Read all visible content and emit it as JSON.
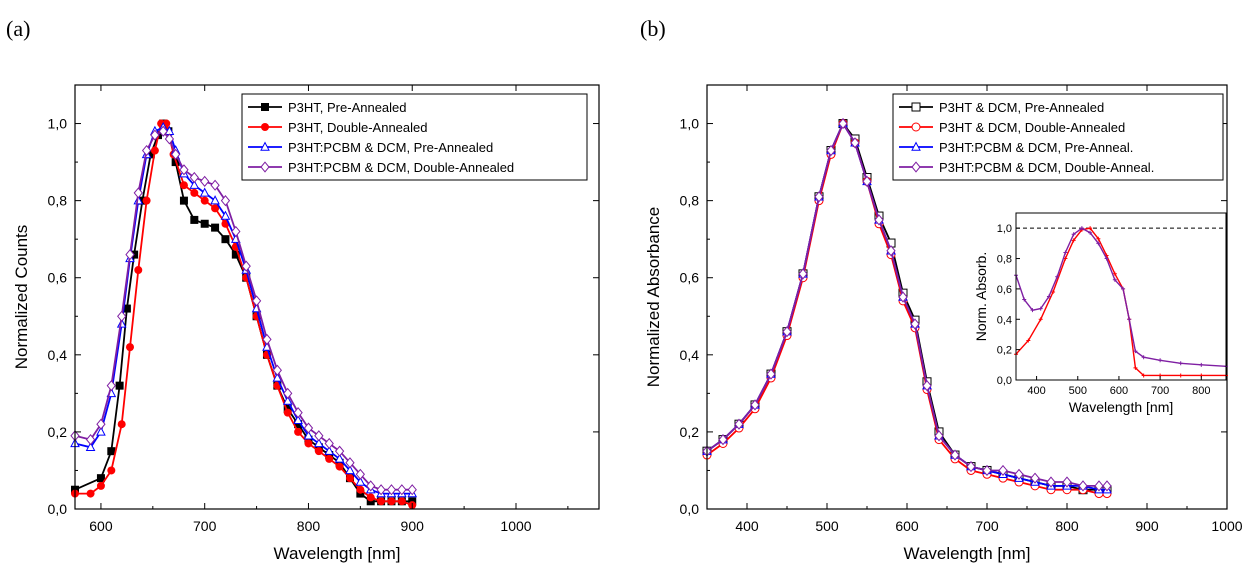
{
  "chart_data": [
    {
      "panel_label": "(a)",
      "type": "line",
      "xlabel": "Wavelength [nm]",
      "ylabel": "Normalized Counts",
      "xlim": [
        575,
        1080
      ],
      "ylim": [
        0.0,
        1.1
      ],
      "xticks": [
        600,
        700,
        800,
        900,
        1000
      ],
      "yticks": [
        0.0,
        0.2,
        0.4,
        0.6,
        0.8,
        1.0
      ],
      "xtick_labels": [
        "600",
        "700",
        "800",
        "900",
        "1000"
      ],
      "ytick_labels": [
        "0,0",
        "0,2",
        "0,4",
        "0,6",
        "0,8",
        "1,0"
      ],
      "grid": false,
      "legend_position": "top-right",
      "series": [
        {
          "name": "P3HT, Pre-Annealed",
          "color": "#000000",
          "marker": "square-filled",
          "x": [
            575,
            600,
            610,
            618,
            625,
            632,
            640,
            648,
            655,
            660,
            665,
            672,
            680,
            690,
            700,
            710,
            720,
            730,
            740,
            750,
            760,
            770,
            780,
            790,
            800,
            810,
            820,
            830,
            840,
            850,
            860,
            870,
            880,
            890,
            900
          ],
          "y": [
            0.05,
            0.08,
            0.15,
            0.32,
            0.52,
            0.66,
            0.8,
            0.92,
            0.97,
            1.0,
            0.98,
            0.9,
            0.8,
            0.75,
            0.74,
            0.73,
            0.7,
            0.66,
            0.6,
            0.5,
            0.4,
            0.32,
            0.26,
            0.22,
            0.18,
            0.16,
            0.14,
            0.12,
            0.08,
            0.04,
            0.02,
            0.02,
            0.02,
            0.02,
            0.02
          ]
        },
        {
          "name": "P3HT, Double-Annealed",
          "color": "#ff0000",
          "marker": "circle-filled",
          "x": [
            575,
            590,
            600,
            610,
            620,
            628,
            636,
            644,
            652,
            658,
            663,
            670,
            680,
            690,
            700,
            710,
            720,
            730,
            740,
            750,
            760,
            770,
            780,
            790,
            800,
            810,
            820,
            830,
            840,
            850,
            860,
            870,
            880,
            890,
            900
          ],
          "y": [
            0.04,
            0.04,
            0.06,
            0.1,
            0.22,
            0.42,
            0.62,
            0.8,
            0.93,
            1.0,
            1.0,
            0.92,
            0.84,
            0.82,
            0.8,
            0.78,
            0.74,
            0.68,
            0.6,
            0.5,
            0.4,
            0.32,
            0.25,
            0.2,
            0.17,
            0.15,
            0.13,
            0.11,
            0.08,
            0.05,
            0.03,
            0.02,
            0.02,
            0.02,
            0.01
          ]
        },
        {
          "name": "P3HT:PCBM & DCM, Pre-Annealed",
          "color": "#0000ff",
          "marker": "triangle-open",
          "x": [
            575,
            590,
            600,
            610,
            620,
            628,
            636,
            644,
            652,
            660,
            666,
            672,
            680,
            690,
            700,
            710,
            720,
            730,
            740,
            750,
            760,
            770,
            780,
            790,
            800,
            810,
            820,
            830,
            840,
            850,
            860,
            870,
            880,
            890,
            900
          ],
          "y": [
            0.17,
            0.16,
            0.2,
            0.3,
            0.48,
            0.65,
            0.8,
            0.92,
            0.98,
            0.99,
            0.98,
            0.93,
            0.87,
            0.84,
            0.82,
            0.8,
            0.76,
            0.7,
            0.62,
            0.52,
            0.42,
            0.34,
            0.28,
            0.23,
            0.19,
            0.17,
            0.15,
            0.13,
            0.1,
            0.07,
            0.05,
            0.04,
            0.04,
            0.04,
            0.04
          ]
        },
        {
          "name": "P3HT:PCBM & DCM, Double-Annealed",
          "color": "#7f1fa3",
          "marker": "diamond-open",
          "x": [
            575,
            590,
            600,
            610,
            620,
            628,
            636,
            644,
            652,
            660,
            666,
            672,
            680,
            690,
            700,
            710,
            720,
            730,
            740,
            750,
            760,
            770,
            780,
            790,
            800,
            810,
            820,
            830,
            840,
            850,
            860,
            870,
            880,
            890,
            900
          ],
          "y": [
            0.19,
            0.18,
            0.22,
            0.32,
            0.5,
            0.66,
            0.82,
            0.93,
            0.97,
            0.98,
            0.96,
            0.92,
            0.88,
            0.86,
            0.85,
            0.84,
            0.8,
            0.72,
            0.63,
            0.54,
            0.44,
            0.36,
            0.3,
            0.25,
            0.21,
            0.19,
            0.17,
            0.15,
            0.12,
            0.09,
            0.06,
            0.05,
            0.05,
            0.05,
            0.05
          ]
        }
      ]
    },
    {
      "panel_label": "(b)",
      "type": "line",
      "xlabel": "Wavelength [nm]",
      "ylabel": "Normalized Absorbance",
      "xlim": [
        350,
        1000
      ],
      "ylim": [
        0.0,
        1.1
      ],
      "xticks": [
        400,
        500,
        600,
        700,
        800,
        900,
        1000
      ],
      "yticks": [
        0.0,
        0.2,
        0.4,
        0.6,
        0.8,
        1.0
      ],
      "xtick_labels": [
        "400",
        "500",
        "600",
        "700",
        "800",
        "900",
        "1000"
      ],
      "ytick_labels": [
        "0,0",
        "0,2",
        "0,4",
        "0,6",
        "0,8",
        "1,0"
      ],
      "grid": false,
      "legend_position": "top-right",
      "series": [
        {
          "name": "P3HT & DCM, Pre-Annealed",
          "color": "#000000",
          "marker": "square-open",
          "x": [
            350,
            370,
            390,
            410,
            430,
            450,
            470,
            490,
            505,
            520,
            535,
            550,
            565,
            580,
            595,
            610,
            625,
            640,
            660,
            680,
            700,
            720,
            740,
            760,
            780,
            800,
            820,
            840,
            850
          ],
          "y": [
            0.15,
            0.18,
            0.22,
            0.27,
            0.35,
            0.46,
            0.61,
            0.81,
            0.93,
            1.0,
            0.96,
            0.86,
            0.76,
            0.69,
            0.56,
            0.49,
            0.33,
            0.2,
            0.14,
            0.11,
            0.1,
            0.09,
            0.08,
            0.07,
            0.06,
            0.06,
            0.05,
            0.05,
            0.05
          ]
        },
        {
          "name": "P3HT & DCM, Double-Annealed",
          "color": "#ff0000",
          "marker": "circle-open",
          "x": [
            350,
            370,
            390,
            410,
            430,
            450,
            470,
            490,
            505,
            520,
            535,
            550,
            565,
            580,
            595,
            610,
            625,
            640,
            660,
            680,
            700,
            720,
            740,
            760,
            780,
            800,
            820,
            840,
            850
          ],
          "y": [
            0.14,
            0.17,
            0.21,
            0.26,
            0.34,
            0.45,
            0.6,
            0.8,
            0.92,
            1.0,
            0.95,
            0.85,
            0.74,
            0.66,
            0.54,
            0.47,
            0.31,
            0.18,
            0.13,
            0.1,
            0.09,
            0.08,
            0.07,
            0.06,
            0.05,
            0.05,
            0.05,
            0.04,
            0.04
          ]
        },
        {
          "name": "P3HT:PCBM & DCM, Pre-Anneal.",
          "color": "#0000ff",
          "marker": "triangle-open",
          "x": [
            350,
            370,
            390,
            410,
            430,
            450,
            470,
            490,
            505,
            520,
            535,
            550,
            565,
            580,
            595,
            610,
            625,
            640,
            660,
            680,
            700,
            720,
            740,
            760,
            780,
            800,
            820,
            840,
            850
          ],
          "y": [
            0.15,
            0.18,
            0.22,
            0.27,
            0.35,
            0.46,
            0.61,
            0.81,
            0.93,
            1.0,
            0.95,
            0.85,
            0.75,
            0.67,
            0.55,
            0.48,
            0.32,
            0.19,
            0.14,
            0.11,
            0.1,
            0.09,
            0.08,
            0.07,
            0.06,
            0.06,
            0.06,
            0.05,
            0.05
          ]
        },
        {
          "name": "P3HT:PCBM & DCM, Double-Anneal.",
          "color": "#7f1fa3",
          "marker": "diamond-open",
          "x": [
            350,
            370,
            390,
            410,
            430,
            450,
            470,
            490,
            505,
            520,
            535,
            550,
            565,
            580,
            595,
            610,
            625,
            640,
            660,
            680,
            700,
            720,
            740,
            760,
            780,
            800,
            820,
            840,
            850
          ],
          "y": [
            0.15,
            0.18,
            0.22,
            0.27,
            0.35,
            0.46,
            0.61,
            0.81,
            0.93,
            1.0,
            0.95,
            0.85,
            0.75,
            0.67,
            0.55,
            0.48,
            0.32,
            0.19,
            0.14,
            0.11,
            0.1,
            0.1,
            0.09,
            0.08,
            0.07,
            0.07,
            0.06,
            0.06,
            0.06
          ]
        }
      ],
      "inset": {
        "type": "line",
        "xlabel": "Wavelength [nm]",
        "ylabel": "Norm. Absorb.",
        "xlim": [
          350,
          860
        ],
        "ylim": [
          0.0,
          1.1
        ],
        "xticks": [
          400,
          500,
          600,
          700,
          800
        ],
        "yticks": [
          0.0,
          0.2,
          0.4,
          0.6,
          0.8,
          1.0
        ],
        "xtick_labels": [
          "400",
          "500",
          "600",
          "700",
          "800"
        ],
        "ytick_labels": [
          "0,0",
          "0,2",
          "0,4",
          "0,6",
          "0,8",
          "1,0"
        ],
        "reference_line_y": 1.0,
        "series": [
          {
            "color": "#ff0000",
            "marker": "plus",
            "x": [
              350,
              380,
              410,
              440,
              470,
              490,
              510,
              530,
              550,
              570,
              590,
              610,
              625,
              640,
              660,
              700,
              750,
              800,
              860
            ],
            "y": [
              0.17,
              0.26,
              0.4,
              0.58,
              0.8,
              0.92,
              0.99,
              1.0,
              0.93,
              0.82,
              0.7,
              0.6,
              0.4,
              0.08,
              0.03,
              0.03,
              0.03,
              0.03,
              0.03
            ]
          },
          {
            "color": "#7f1fa3",
            "marker": "plus",
            "x": [
              350,
              370,
              390,
              410,
              430,
              450,
              470,
              490,
              510,
              530,
              550,
              570,
              590,
              610,
              625,
              640,
              660,
              700,
              750,
              800,
              860
            ],
            "y": [
              0.69,
              0.53,
              0.46,
              0.47,
              0.55,
              0.68,
              0.84,
              0.96,
              1.0,
              0.97,
              0.9,
              0.8,
              0.66,
              0.6,
              0.4,
              0.19,
              0.15,
              0.13,
              0.11,
              0.1,
              0.09
            ]
          }
        ]
      }
    }
  ]
}
